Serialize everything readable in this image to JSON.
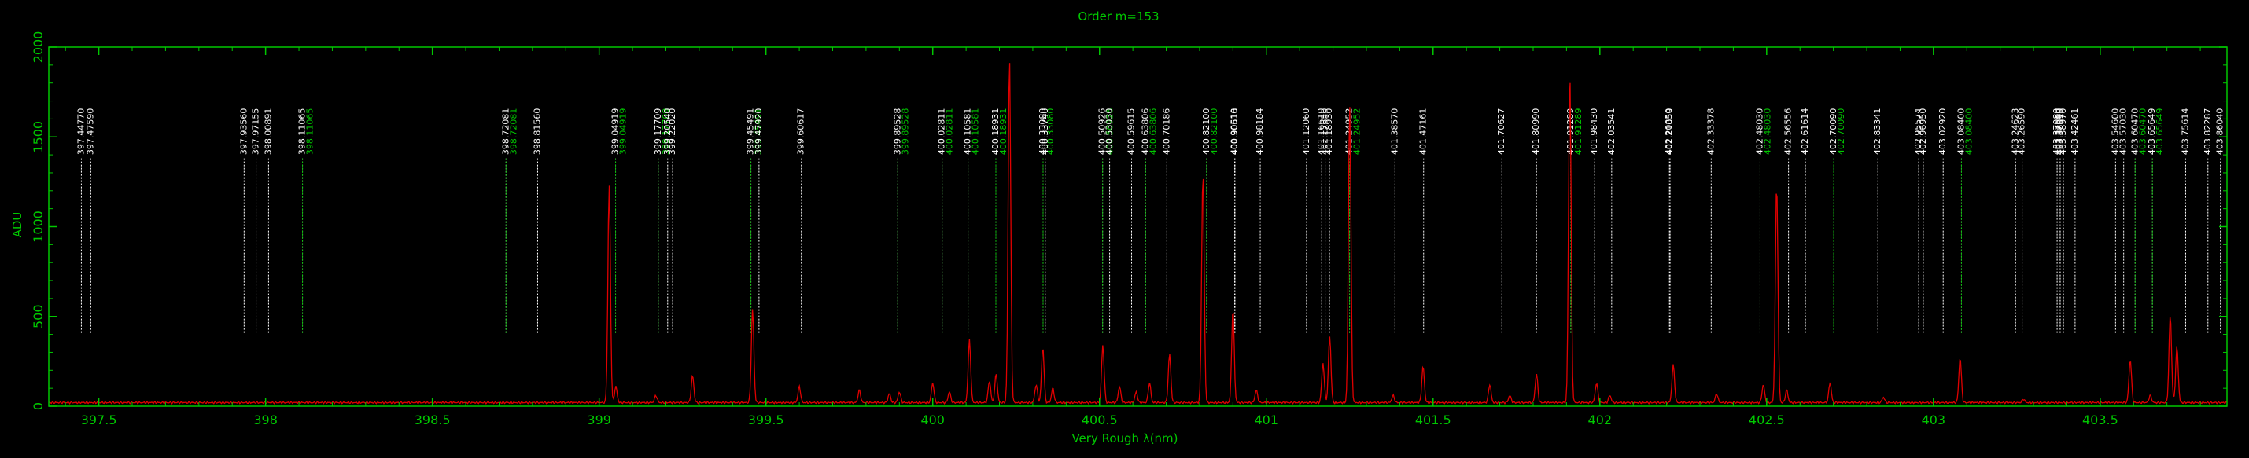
{
  "chart_data": {
    "type": "line",
    "title": "Order m=153",
    "xlabel": "Very Rough λ(nm)",
    "ylabel": "ADU",
    "xlim": [
      397.35,
      403.88
    ],
    "ylim": [
      0,
      2000
    ],
    "x_ticks": [
      397.5,
      398,
      398.5,
      399,
      399.5,
      400,
      400.5,
      401,
      401.5,
      402,
      402.5,
      403,
      403.5
    ],
    "x_tick_labels": [
      "397.5",
      "398",
      "398.5",
      "399",
      "399.5",
      "400",
      "400.5",
      "401",
      "401.5",
      "402",
      "402.5",
      "403",
      "403.5"
    ],
    "y_ticks": [
      0,
      500,
      1000,
      1500,
      2000
    ],
    "y_tick_labels": [
      "0",
      "500",
      "1000",
      "1500",
      "2000"
    ],
    "grid": false,
    "colors": {
      "frame": "#00c800",
      "spectrum": "#e00000",
      "line_white": "#ffffff",
      "line_green": "#00c800",
      "background": "#000000"
    },
    "series": [
      {
        "type": "emission-peaks",
        "baseline": 20,
        "peaks": [
          {
            "x": 399.03,
            "y": 1230
          },
          {
            "x": 399.05,
            "y": 110
          },
          {
            "x": 399.17,
            "y": 60
          },
          {
            "x": 399.28,
            "y": 170
          },
          {
            "x": 399.46,
            "y": 540
          },
          {
            "x": 399.6,
            "y": 110
          },
          {
            "x": 399.78,
            "y": 90
          },
          {
            "x": 399.87,
            "y": 70
          },
          {
            "x": 399.9,
            "y": 80
          },
          {
            "x": 400.0,
            "y": 130
          },
          {
            "x": 400.05,
            "y": 80
          },
          {
            "x": 400.11,
            "y": 370
          },
          {
            "x": 400.17,
            "y": 140
          },
          {
            "x": 400.19,
            "y": 180
          },
          {
            "x": 400.23,
            "y": 1950
          },
          {
            "x": 400.31,
            "y": 120
          },
          {
            "x": 400.33,
            "y": 330
          },
          {
            "x": 400.36,
            "y": 100
          },
          {
            "x": 400.51,
            "y": 340
          },
          {
            "x": 400.56,
            "y": 110
          },
          {
            "x": 400.61,
            "y": 80
          },
          {
            "x": 400.65,
            "y": 130
          },
          {
            "x": 400.71,
            "y": 290
          },
          {
            "x": 400.81,
            "y": 1300
          },
          {
            "x": 400.9,
            "y": 540
          },
          {
            "x": 400.97,
            "y": 90
          },
          {
            "x": 401.17,
            "y": 240
          },
          {
            "x": 401.19,
            "y": 390
          },
          {
            "x": 401.25,
            "y": 1680
          },
          {
            "x": 401.38,
            "y": 60
          },
          {
            "x": 401.47,
            "y": 220
          },
          {
            "x": 401.67,
            "y": 120
          },
          {
            "x": 401.73,
            "y": 60
          },
          {
            "x": 401.81,
            "y": 180
          },
          {
            "x": 401.91,
            "y": 1860
          },
          {
            "x": 401.99,
            "y": 130
          },
          {
            "x": 402.03,
            "y": 60
          },
          {
            "x": 402.22,
            "y": 230
          },
          {
            "x": 402.35,
            "y": 70
          },
          {
            "x": 402.49,
            "y": 120
          },
          {
            "x": 402.53,
            "y": 1240
          },
          {
            "x": 402.56,
            "y": 90
          },
          {
            "x": 402.69,
            "y": 130
          },
          {
            "x": 402.85,
            "y": 50
          },
          {
            "x": 403.08,
            "y": 270
          },
          {
            "x": 403.27,
            "y": 40
          },
          {
            "x": 403.59,
            "y": 260
          },
          {
            "x": 403.65,
            "y": 60
          },
          {
            "x": 403.71,
            "y": 510
          },
          {
            "x": 403.73,
            "y": 330
          }
        ]
      }
    ],
    "annotations": [
      {
        "wl": 397.4477,
        "label": "397.44770",
        "color": "white"
      },
      {
        "wl": 397.4759,
        "label": "397.47590",
        "color": "white"
      },
      {
        "wl": 397.9356,
        "label": "397.93560",
        "color": "white"
      },
      {
        "wl": 397.97155,
        "label": "397.97155",
        "color": "white"
      },
      {
        "wl": 398.00891,
        "label": "398.00891",
        "color": "white"
      },
      {
        "wl": 398.11065,
        "label": "398.11065",
        "color": "white"
      },
      {
        "wl": 398.11065,
        "label": "398.11065",
        "color": "green"
      },
      {
        "wl": 398.72081,
        "label": "398.72081",
        "color": "white"
      },
      {
        "wl": 398.72081,
        "label": "398.72081",
        "color": "green"
      },
      {
        "wl": 398.8156,
        "label": "398.81560",
        "color": "white"
      },
      {
        "wl": 399.04919,
        "label": "399.04919",
        "color": "white"
      },
      {
        "wl": 399.04919,
        "label": "399.04919",
        "color": "green"
      },
      {
        "wl": 399.17709,
        "label": "399.17709",
        "color": "white"
      },
      {
        "wl": 399.17709,
        "label": "399.17709",
        "color": "green"
      },
      {
        "wl": 399.2054,
        "label": "399.20540",
        "color": "white"
      },
      {
        "wl": 399.2202,
        "label": "399.22020",
        "color": "white"
      },
      {
        "wl": 399.45491,
        "label": "399.45491",
        "color": "white"
      },
      {
        "wl": 399.45491,
        "label": "399.45491",
        "color": "green"
      },
      {
        "wl": 399.4792,
        "label": "399.47920",
        "color": "white"
      },
      {
        "wl": 399.60617,
        "label": "399.60617",
        "color": "white"
      },
      {
        "wl": 399.89528,
        "label": "399.89528",
        "color": "white"
      },
      {
        "wl": 399.89528,
        "label": "399.89528",
        "color": "green"
      },
      {
        "wl": 400.02811,
        "label": "400.02811",
        "color": "white"
      },
      {
        "wl": 400.02811,
        "label": "400.02811",
        "color": "green"
      },
      {
        "wl": 400.10581,
        "label": "400.10581",
        "color": "white"
      },
      {
        "wl": 400.10581,
        "label": "400.10581",
        "color": "green"
      },
      {
        "wl": 400.18931,
        "label": "400.18931",
        "color": "white"
      },
      {
        "wl": 400.18931,
        "label": "400.18931",
        "color": "green"
      },
      {
        "wl": 400.3308,
        "label": "400.33080",
        "color": "white"
      },
      {
        "wl": 400.3308,
        "label": "400.33080",
        "color": "green"
      },
      {
        "wl": 400.3374,
        "label": "400.33740",
        "color": "white"
      },
      {
        "wl": 400.50926,
        "label": "400.50926",
        "color": "white"
      },
      {
        "wl": 400.50926,
        "label": "400.50926",
        "color": "green"
      },
      {
        "wl": 400.5303,
        "label": "400.53030",
        "color": "white"
      },
      {
        "wl": 400.59615,
        "label": "400.59615",
        "color": "white"
      },
      {
        "wl": 400.63806,
        "label": "400.63806",
        "color": "white"
      },
      {
        "wl": 400.63806,
        "label": "400.63806",
        "color": "green"
      },
      {
        "wl": 400.70186,
        "label": "400.70186",
        "color": "white"
      },
      {
        "wl": 400.821,
        "label": "400.82100",
        "color": "white"
      },
      {
        "wl": 400.821,
        "label": "400.82100",
        "color": "green"
      },
      {
        "wl": 400.9051,
        "label": "400.90510",
        "color": "white"
      },
      {
        "wl": 400.90616,
        "label": "400.90616",
        "color": "white"
      },
      {
        "wl": 400.98184,
        "label": "400.98184",
        "color": "white"
      },
      {
        "wl": 401.1206,
        "label": "401.12060",
        "color": "white"
      },
      {
        "wl": 401.1661,
        "label": "401.16610",
        "color": "white"
      },
      {
        "wl": 401.1765,
        "label": "401.17650",
        "color": "white"
      },
      {
        "wl": 401.1893,
        "label": "401.18930",
        "color": "white"
      },
      {
        "wl": 401.24952,
        "label": "401.24952",
        "color": "white"
      },
      {
        "wl": 401.24952,
        "label": "401.24952",
        "color": "green"
      },
      {
        "wl": 401.3857,
        "label": "401.38570",
        "color": "white"
      },
      {
        "wl": 401.47161,
        "label": "401.47161",
        "color": "white"
      },
      {
        "wl": 401.70627,
        "label": "401.70627",
        "color": "white"
      },
      {
        "wl": 401.8099,
        "label": "401.80990",
        "color": "white"
      },
      {
        "wl": 401.91289,
        "label": "401.91289",
        "color": "white"
      },
      {
        "wl": 401.91289,
        "label": "401.91289",
        "color": "green"
      },
      {
        "wl": 401.9843,
        "label": "401.98430",
        "color": "white"
      },
      {
        "wl": 402.03541,
        "label": "402.03541",
        "color": "white"
      },
      {
        "wl": 402.2085,
        "label": "402.20850",
        "color": "white"
      },
      {
        "wl": 402.21059,
        "label": "402.21059",
        "color": "white"
      },
      {
        "wl": 402.33378,
        "label": "402.33378",
        "color": "white"
      },
      {
        "wl": 402.4803,
        "label": "402.48030",
        "color": "white"
      },
      {
        "wl": 402.4803,
        "label": "402.48030",
        "color": "green"
      },
      {
        "wl": 402.56556,
        "label": "402.56556",
        "color": "white"
      },
      {
        "wl": 402.61614,
        "label": "402.61614",
        "color": "white"
      },
      {
        "wl": 402.7009,
        "label": "402.70090",
        "color": "white"
      },
      {
        "wl": 402.7009,
        "label": "402.70090",
        "color": "green"
      },
      {
        "wl": 402.83341,
        "label": "402.83341",
        "color": "white"
      },
      {
        "wl": 402.95574,
        "label": "402.95574",
        "color": "white"
      },
      {
        "wl": 402.9695,
        "label": "402.96950",
        "color": "white"
      },
      {
        "wl": 403.0292,
        "label": "403.02920",
        "color": "white"
      },
      {
        "wl": 403.084,
        "label": "403.08400",
        "color": "white"
      },
      {
        "wl": 403.084,
        "label": "403.08400",
        "color": "green"
      },
      {
        "wl": 403.24623,
        "label": "403.24623",
        "color": "white"
      },
      {
        "wl": 403.2659,
        "label": "403.26590",
        "color": "white"
      },
      {
        "wl": 403.3708,
        "label": "403.37080",
        "color": "white"
      },
      {
        "wl": 403.3768,
        "label": "403.37680",
        "color": "white"
      },
      {
        "wl": 403.3801,
        "label": "403.38010",
        "color": "white"
      },
      {
        "wl": 403.3897,
        "label": "403.38970",
        "color": "white"
      },
      {
        "wl": 403.42461,
        "label": "403.42461",
        "color": "white"
      },
      {
        "wl": 403.546,
        "label": "403.54600",
        "color": "white"
      },
      {
        "wl": 403.5703,
        "label": "403.57030",
        "color": "white"
      },
      {
        "wl": 403.6047,
        "label": "403.60470",
        "color": "white"
      },
      {
        "wl": 403.6047,
        "label": "403.60470",
        "color": "green"
      },
      {
        "wl": 403.65649,
        "label": "403.65649",
        "color": "white"
      },
      {
        "wl": 403.65649,
        "label": "403.65649",
        "color": "green"
      },
      {
        "wl": 403.75614,
        "label": "403.75614",
        "color": "white"
      },
      {
        "wl": 403.82287,
        "label": "403.82287",
        "color": "white"
      },
      {
        "wl": 403.8604,
        "label": "403.86040",
        "color": "white"
      }
    ]
  }
}
